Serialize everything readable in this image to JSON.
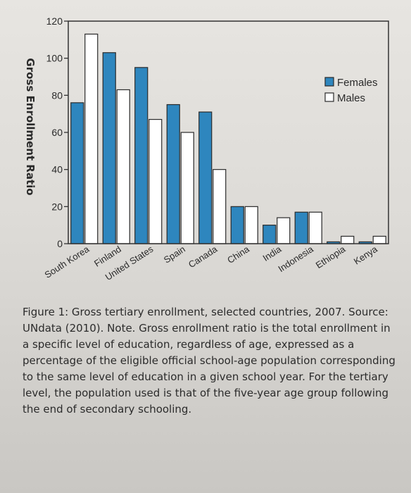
{
  "chart_data": {
    "type": "bar",
    "categories": [
      "South Korea",
      "Finland",
      "United States",
      "Spain",
      "Canada",
      "China",
      "India",
      "Indonesia",
      "Ethiopia",
      "Kenya"
    ],
    "series": [
      {
        "name": "Females",
        "values": [
          76,
          103,
          95,
          75,
          71,
          20,
          10,
          17,
          1,
          1
        ],
        "color": "#2e86be"
      },
      {
        "name": "Males",
        "values": [
          113,
          83,
          67,
          60,
          40,
          20,
          14,
          17,
          4,
          4
        ],
        "color": "#ffffff"
      }
    ],
    "ylabel": "Gross Enrollment Ratio",
    "xlabel": "",
    "ylim": [
      0,
      120
    ],
    "yticks": [
      0,
      20,
      40,
      60,
      80,
      100,
      120
    ],
    "legend": "top-right",
    "grid": false
  },
  "caption": "Figure 1: Gross tertiary enrollment, selected countries, 2007. Source: UNdata (2010). Note. Gross enrollment ratio is the total enrollment in a specific level of education, regardless of age, expressed as a percentage of the eligible official school-age population corresponding to the same level of education in a given school year. For the tertiary level, the population used is that of the five-year age group following the end of secondary schooling."
}
